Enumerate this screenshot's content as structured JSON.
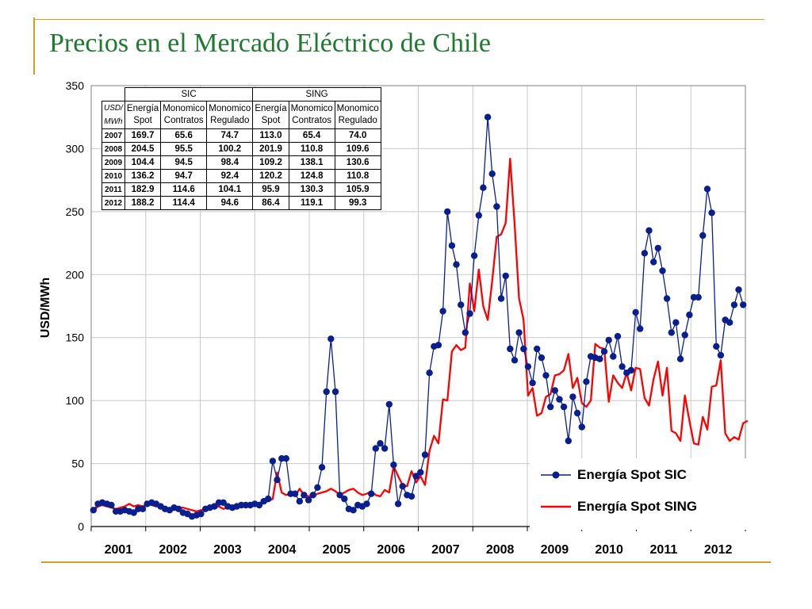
{
  "slide": {
    "title": "Precios en el Mercado Eléctrico de Chile"
  },
  "colors": {
    "sic": "#0a1f8f",
    "sing": "#ff0000",
    "title": "#1e7a2e",
    "accent_line": "#c9a227"
  },
  "table": {
    "group_headers": [
      "SIC",
      "SING"
    ],
    "unit_label": [
      "USD/",
      "MWh"
    ],
    "columns": [
      [
        "Energía",
        "Spot"
      ],
      [
        "Monomico",
        "Contratos"
      ],
      [
        "Monomico",
        "Regulado"
      ],
      [
        "Energía",
        "Spot"
      ],
      [
        "Monomico",
        "Contratos"
      ],
      [
        "Monomico",
        "Regulado"
      ]
    ],
    "rows": [
      {
        "year": "2007",
        "values": [
          "169.7",
          "65.6",
          "74.7",
          "113.0",
          "65.4",
          "74.0"
        ]
      },
      {
        "year": "2008",
        "values": [
          "204.5",
          "95.5",
          "100.2",
          "201.9",
          "110.8",
          "109.6"
        ]
      },
      {
        "year": "2009",
        "values": [
          "104.4",
          "94.5",
          "98.4",
          "109.2",
          "138.1",
          "130.6"
        ]
      },
      {
        "year": "2010",
        "values": [
          "136.2",
          "94.7",
          "92.4",
          "120.2",
          "124.8",
          "110.8"
        ]
      },
      {
        "year": "2011",
        "values": [
          "182.9",
          "114.6",
          "104.1",
          "95.9",
          "130.3",
          "105.9"
        ]
      },
      {
        "year": "2012",
        "values": [
          "188.2",
          "114.4",
          "94.6",
          "86.4",
          "119.1",
          "99.3"
        ]
      }
    ]
  },
  "chart_data": {
    "type": "line",
    "ylabel": "USD/MWh",
    "xlabel": "",
    "ylim": [
      0,
      350
    ],
    "yticks": [
      "0",
      "50",
      "100",
      "150",
      "200",
      "250",
      "300",
      "350"
    ],
    "xticks": [
      "2001",
      "2002",
      "2003",
      "2004",
      "2005",
      "2006",
      "2007",
      "2008",
      "2009",
      "2010",
      "2011",
      "2012"
    ],
    "x_start": "2001-01",
    "x_end": "2012-12",
    "grid": true,
    "legend_position": "bottom-right",
    "series": [
      {
        "name": "Energía Spot SIC",
        "marker": "circle",
        "values": [
          13,
          18,
          19,
          18,
          17,
          12,
          12,
          13,
          12,
          11,
          14,
          14,
          18,
          19,
          18,
          16,
          14,
          13,
          15,
          14,
          11,
          10,
          8,
          9,
          10,
          14,
          15,
          16,
          19,
          19,
          16,
          15,
          16,
          17,
          17,
          17,
          18,
          17,
          20,
          22,
          52,
          37,
          54,
          54,
          26,
          26,
          20,
          25,
          21,
          25,
          31,
          47,
          107,
          149,
          107,
          25,
          22,
          14,
          13,
          17,
          16,
          18,
          26,
          62,
          66,
          62,
          97,
          49,
          18,
          32,
          25,
          24,
          40,
          43,
          57,
          122,
          143,
          144,
          171,
          250,
          223,
          208,
          176,
          154,
          169,
          215,
          247,
          269,
          325,
          280,
          254,
          181,
          199,
          141,
          132,
          154,
          141,
          127,
          114,
          141,
          134,
          120,
          95,
          108,
          101,
          95,
          68,
          103,
          90,
          79,
          115,
          135,
          134,
          133,
          139,
          148,
          135,
          151,
          127,
          122,
          124,
          170,
          157,
          217,
          235,
          210,
          221,
          203,
          181,
          154,
          162,
          133,
          152,
          168,
          182,
          182,
          231,
          268,
          249,
          143,
          136,
          164,
          162,
          176,
          188,
          176
        ]
      },
      {
        "name": "Energía Spot SING",
        "marker": "none",
        "values": [
          12,
          16,
          17,
          16,
          15,
          14,
          15,
          16,
          18,
          16,
          17,
          16,
          18,
          17,
          16,
          16,
          15,
          14,
          14,
          15,
          15,
          14,
          13,
          12,
          13,
          14,
          14,
          15,
          16,
          14,
          15,
          16,
          17,
          16,
          17,
          17,
          18,
          17,
          19,
          20,
          22,
          43,
          27,
          25,
          26,
          24,
          30,
          25,
          24,
          24,
          26,
          27,
          28,
          30,
          28,
          25,
          27,
          29,
          30,
          27,
          25,
          26,
          28,
          25,
          24,
          29,
          27,
          48,
          40,
          33,
          32,
          44,
          35,
          40,
          33,
          60,
          72,
          66,
          101,
          100,
          139,
          144,
          140,
          142,
          193,
          171,
          204,
          175,
          164,
          195,
          230,
          232,
          241,
          292,
          240,
          181,
          164,
          104,
          110,
          88,
          90,
          103,
          105,
          120,
          121,
          124,
          137,
          110,
          118,
          98,
          95,
          100,
          145,
          142,
          141,
          99,
          120,
          114,
          110,
          122,
          108,
          126,
          125,
          102,
          96,
          117,
          131,
          104,
          126,
          76,
          74,
          68,
          104,
          84,
          66,
          65,
          87,
          77,
          111,
          112,
          132,
          74,
          68,
          71,
          69,
          82,
          84
        ]
      }
    ]
  }
}
